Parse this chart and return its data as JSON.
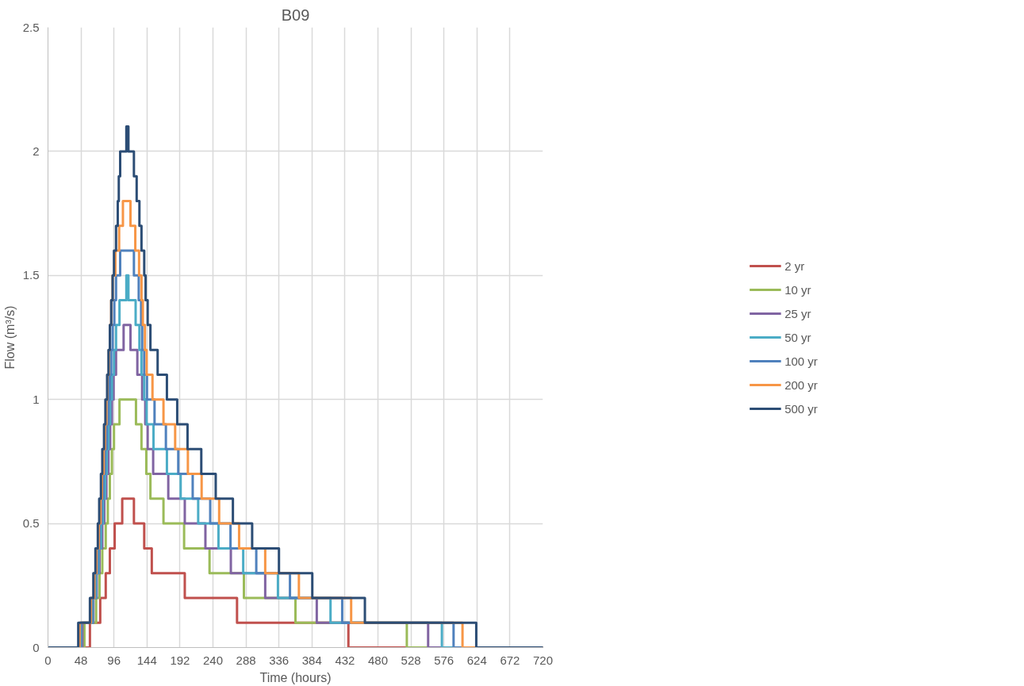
{
  "chart_data": {
    "type": "step",
    "title": "B09",
    "xlabel": "Time (hours)",
    "ylabel": "Flow (m³/s)",
    "xlim": [
      0,
      720
    ],
    "xticks": [
      0,
      48,
      96,
      144,
      192,
      240,
      288,
      336,
      384,
      432,
      480,
      528,
      576,
      624,
      672,
      720
    ],
    "ylim": [
      0,
      2.5
    ],
    "yticks": [
      0,
      0.5,
      1,
      1.5,
      2,
      2.5
    ],
    "grid": true,
    "legend": "right",
    "line_style": "solid",
    "marker": "none",
    "series": [
      {
        "name": "2 yr",
        "color": "#c0504d",
        "x": [
          0,
          61,
          76,
          84,
          90,
          97,
          108,
          125,
          140,
          151,
          199,
          275,
          437,
          720
        ],
        "values": [
          0,
          0.1,
          0.2,
          0.3,
          0.4,
          0.5,
          0.6,
          0.5,
          0.4,
          0.3,
          0.2,
          0.1,
          0,
          0
        ]
      },
      {
        "name": "10 yr",
        "color": "#9bbb59",
        "x": [
          0,
          53,
          70,
          75,
          79,
          84,
          87,
          90,
          93,
          96,
          104,
          128,
          136,
          143,
          149,
          168,
          198,
          235,
          285,
          360,
          522,
          720
        ],
        "values": [
          0,
          0.1,
          0.2,
          0.3,
          0.4,
          0.5,
          0.6,
          0.7,
          0.8,
          0.9,
          1.0,
          0.9,
          0.8,
          0.7,
          0.6,
          0.5,
          0.4,
          0.3,
          0.2,
          0.1,
          0,
          0
        ]
      },
      {
        "name": "25 yr",
        "color": "#8064a2",
        "x": [
          0,
          50,
          66,
          71,
          75,
          79,
          82,
          85,
          88,
          90.5,
          93,
          95.5,
          99,
          110,
          120,
          130,
          137,
          141.5,
          145,
          153,
          175,
          199,
          229,
          266,
          316,
          391,
          553,
          720
        ],
        "values": [
          0,
          0.1,
          0.2,
          0.3,
          0.4,
          0.5,
          0.6,
          0.7,
          0.8,
          0.9,
          1.0,
          1.1,
          1.2,
          1.3,
          1.2,
          1.1,
          1.0,
          0.9,
          0.8,
          0.7,
          0.6,
          0.5,
          0.4,
          0.3,
          0.2,
          0.1,
          0,
          0
        ]
      },
      {
        "name": "50 yr",
        "color": "#4bacc6",
        "x": [
          0,
          48,
          65,
          70,
          73.5,
          77,
          80,
          83,
          85.5,
          88,
          90.5,
          93,
          96,
          99,
          104,
          114,
          117,
          127.5,
          133,
          136,
          140,
          143.5,
          153.5,
          173,
          193,
          218.5,
          248,
          284,
          334.5,
          411,
          573,
          720
        ],
        "values": [
          0,
          0.1,
          0.2,
          0.3,
          0.4,
          0.5,
          0.6,
          0.7,
          0.8,
          0.9,
          1.0,
          1.1,
          1.2,
          1.3,
          1.4,
          1.5,
          1.4,
          1.3,
          1.2,
          1.1,
          1.0,
          0.9,
          0.8,
          0.7,
          0.6,
          0.5,
          0.4,
          0.3,
          0.2,
          0.1,
          0,
          0
        ]
      },
      {
        "name": "100 yr",
        "color": "#4f81bd",
        "x": [
          0,
          47,
          64,
          68.5,
          72,
          75,
          78,
          80.5,
          83,
          85.5,
          88,
          90,
          92,
          94,
          96.5,
          99,
          105,
          125,
          132,
          135.5,
          137,
          140,
          144,
          155,
          171.5,
          189.5,
          210.5,
          236,
          265.5,
          303,
          352,
          428,
          590,
          720
        ],
        "values": [
          0,
          0.1,
          0.2,
          0.3,
          0.4,
          0.5,
          0.6,
          0.7,
          0.8,
          0.9,
          1.0,
          1.1,
          1.2,
          1.3,
          1.4,
          1.5,
          1.6,
          1.5,
          1.4,
          1.3,
          1.2,
          1.1,
          1.0,
          0.9,
          0.8,
          0.7,
          0.6,
          0.5,
          0.4,
          0.3,
          0.2,
          0.1,
          0,
          0
        ]
      },
      {
        "name": "200 yr",
        "color": "#f79646",
        "x": [
          0,
          46,
          62.5,
          67.5,
          70.5,
          74,
          76.5,
          78.5,
          81,
          83,
          85,
          86.5,
          88.5,
          90,
          92,
          94,
          98,
          103.5,
          109,
          120,
          127,
          132.5,
          136,
          138,
          141,
          143.5,
          152,
          168,
          185,
          203.5,
          223.5,
          249,
          278,
          316,
          365,
          441,
          603,
          720
        ],
        "values": [
          0,
          0.1,
          0.2,
          0.3,
          0.4,
          0.5,
          0.6,
          0.7,
          0.8,
          0.9,
          1.0,
          1.1,
          1.2,
          1.3,
          1.4,
          1.5,
          1.6,
          1.7,
          1.8,
          1.7,
          1.6,
          1.5,
          1.4,
          1.3,
          1.2,
          1.1,
          1.0,
          0.9,
          0.8,
          0.7,
          0.6,
          0.5,
          0.4,
          0.3,
          0.2,
          0.1,
          0,
          0
        ]
      },
      {
        "name": "500 yr",
        "color": "#2c4d75",
        "x": [
          0,
          44,
          61,
          66,
          69,
          72.5,
          74.5,
          77,
          79,
          81.5,
          83.5,
          86,
          88,
          90,
          92,
          94,
          96,
          99,
          101.5,
          103,
          105,
          114,
          117,
          125,
          129,
          133,
          136,
          140,
          142,
          145,
          149,
          159.5,
          173,
          188,
          203,
          223,
          244,
          269,
          297,
          336,
          384.5,
          461,
          623,
          720
        ],
        "values": [
          0,
          0.1,
          0.2,
          0.3,
          0.4,
          0.5,
          0.6,
          0.7,
          0.8,
          0.9,
          1.0,
          1.1,
          1.2,
          1.3,
          1.4,
          1.5,
          1.6,
          1.7,
          1.8,
          1.9,
          2.0,
          2.1,
          2.0,
          1.9,
          1.8,
          1.7,
          1.6,
          1.5,
          1.4,
          1.3,
          1.2,
          1.1,
          1.0,
          0.9,
          0.8,
          0.7,
          0.6,
          0.5,
          0.4,
          0.3,
          0.2,
          0.1,
          0,
          0
        ]
      }
    ]
  }
}
